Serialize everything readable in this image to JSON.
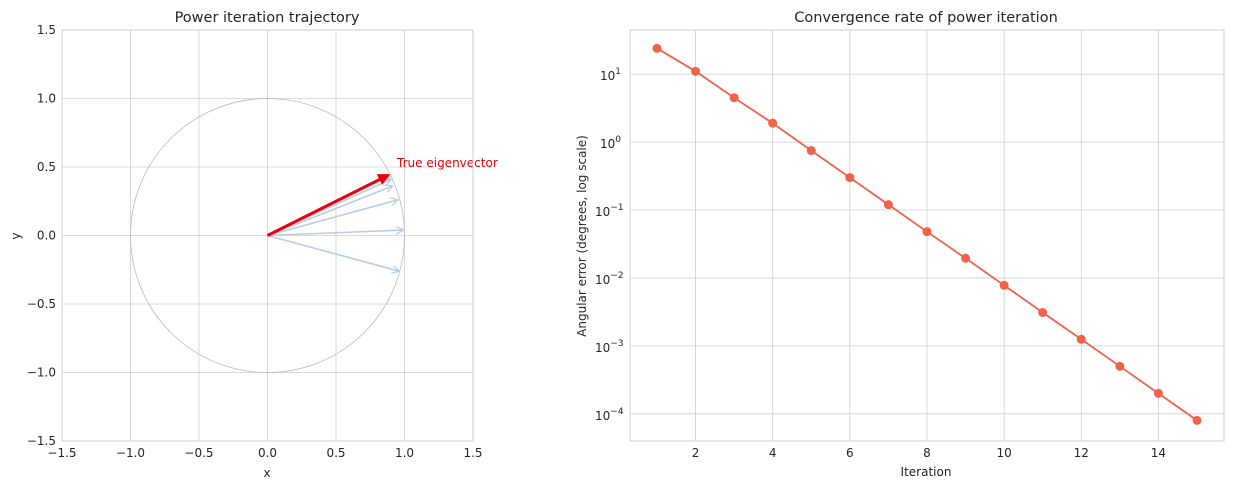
{
  "chart_data": [
    {
      "type": "vector-trajectory",
      "title": "Power iteration trajectory",
      "xlabel": "x",
      "ylabel": "y",
      "xlim": [
        -1.5,
        1.5
      ],
      "ylim": [
        -1.5,
        1.5
      ],
      "xticks": [
        -1.5,
        -1.0,
        -0.5,
        0.0,
        0.5,
        1.0,
        1.5
      ],
      "yticks": [
        -1.5,
        -1.0,
        -0.5,
        0.0,
        0.5,
        1.0,
        1.5
      ],
      "xtick_labels": [
        "−1.5",
        "−1.0",
        "−0.5",
        "0.0",
        "0.5",
        "1.0",
        "1.5"
      ],
      "ytick_labels": [
        "−1.5",
        "−1.0",
        "−0.5",
        "0.0",
        "0.5",
        "1.0",
        "1.5"
      ],
      "grid": true,
      "unit_circle": {
        "radius": 1.0,
        "color": "#bbbbbb"
      },
      "iterates": [
        {
          "x": 0.96,
          "y": -0.26
        },
        {
          "x": 0.99,
          "y": 0.04
        },
        {
          "x": 0.95,
          "y": 0.26
        },
        {
          "x": 0.91,
          "y": 0.36
        },
        {
          "x": 0.9,
          "y": 0.41
        },
        {
          "x": 0.89,
          "y": 0.43
        }
      ],
      "iterate_color": "#b7cde3",
      "true_eigenvector": {
        "x": 0.88,
        "y": 0.44,
        "label": "True eigenvector",
        "color": "#e8000b"
      }
    },
    {
      "type": "line",
      "title": "Convergence rate of power iteration",
      "xlabel": "Iteration",
      "ylabel": "Angular error (degrees, log scale)",
      "yscale": "log",
      "xlim": [
        0.3,
        15.7
      ],
      "ylim_log10": [
        -4.4,
        1.65
      ],
      "xticks": [
        2,
        4,
        6,
        8,
        10,
        12,
        14
      ],
      "ytick_exponents": [
        -4,
        -3,
        -2,
        -1,
        0,
        1
      ],
      "grid": true,
      "color": "#f0624a",
      "x": [
        1,
        2,
        3,
        4,
        5,
        6,
        7,
        8,
        9,
        10,
        11,
        12,
        13,
        14,
        15
      ],
      "y": [
        24,
        11,
        4.5,
        1.9,
        0.75,
        0.3,
        0.12,
        0.048,
        0.0195,
        0.0078,
        0.0031,
        0.00125,
        0.0005,
        0.0002,
        8e-05
      ]
    }
  ]
}
